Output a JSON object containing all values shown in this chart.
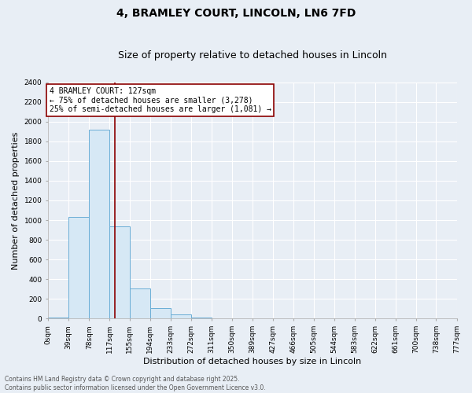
{
  "title": "4, BRAMLEY COURT, LINCOLN, LN6 7FD",
  "subtitle": "Size of property relative to detached houses in Lincoln",
  "xlabel": "Distribution of detached houses by size in Lincoln",
  "ylabel": "Number of detached properties",
  "bins": [
    0,
    39,
    78,
    117,
    155,
    194,
    233,
    272,
    311,
    350,
    389,
    427,
    466,
    505,
    544,
    583,
    622,
    661,
    700,
    738,
    777
  ],
  "bin_labels": [
    "0sqm",
    "39sqm",
    "78sqm",
    "117sqm",
    "155sqm",
    "194sqm",
    "233sqm",
    "272sqm",
    "311sqm",
    "350sqm",
    "389sqm",
    "427sqm",
    "466sqm",
    "505sqm",
    "544sqm",
    "583sqm",
    "622sqm",
    "661sqm",
    "700sqm",
    "738sqm",
    "777sqm"
  ],
  "counts": [
    10,
    1035,
    1920,
    935,
    310,
    110,
    45,
    10,
    0,
    0,
    0,
    0,
    0,
    0,
    0,
    0,
    0,
    0,
    0,
    0
  ],
  "bar_color": "#d6e8f5",
  "bar_edgecolor": "#6baed6",
  "vline_x": 127,
  "vline_color": "#8b0000",
  "annotation_text": "4 BRAMLEY COURT: 127sqm\n← 75% of detached houses are smaller (3,278)\n25% of semi-detached houses are larger (1,081) →",
  "annotation_box_color": "#ffffff",
  "annotation_box_edgecolor": "#8b0000",
  "ylim": [
    0,
    2400
  ],
  "yticks": [
    0,
    200,
    400,
    600,
    800,
    1000,
    1200,
    1400,
    1600,
    1800,
    2000,
    2200,
    2400
  ],
  "footnote": "Contains HM Land Registry data © Crown copyright and database right 2025.\nContains public sector information licensed under the Open Government Licence v3.0.",
  "bg_color": "#e8eef5",
  "plot_bg_color": "#e8eef5",
  "grid_color": "#ffffff",
  "title_fontsize": 10,
  "subtitle_fontsize": 9,
  "label_fontsize": 8,
  "tick_fontsize": 6.5,
  "annot_fontsize": 7,
  "footnote_fontsize": 5.5
}
